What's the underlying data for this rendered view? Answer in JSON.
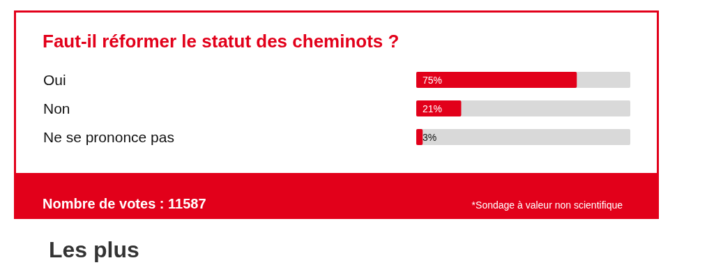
{
  "chart_data": {
    "type": "bar",
    "orientation": "horizontal",
    "title": "Faut-il réformer le statut des cheminots ?",
    "categories": [
      "Oui",
      "Non",
      "Ne se prononce pas"
    ],
    "values": [
      75,
      21,
      3
    ],
    "value_labels": [
      "75%",
      "21%",
      "3%"
    ],
    "color": "#e2001a",
    "xlim": [
      0,
      100
    ],
    "annotations": [
      "Nombre de votes : 11587",
      "*Sondage à valeur non scientifique",
      "Les plus"
    ]
  }
}
